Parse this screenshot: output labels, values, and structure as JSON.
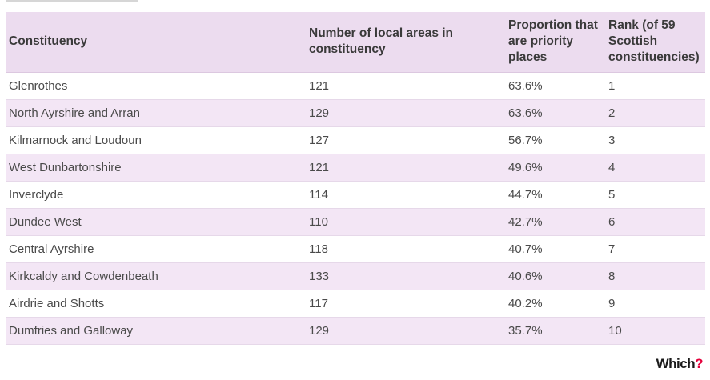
{
  "table": {
    "headers": {
      "constituency": "Constituency",
      "local_areas": "Number of local areas in constituency",
      "proportion": "Proportion that are priority places",
      "rank": "Rank (of 59 Scottish constituencies)"
    },
    "rows": [
      {
        "constituency": "Glenrothes",
        "local_areas": "121",
        "proportion": "63.6%",
        "rank": "1"
      },
      {
        "constituency": "North Ayrshire and Arran",
        "local_areas": "129",
        "proportion": "63.6%",
        "rank": "2"
      },
      {
        "constituency": "Kilmarnock and Loudoun",
        "local_areas": "127",
        "proportion": "56.7%",
        "rank": "3"
      },
      {
        "constituency": "West Dunbartonshire",
        "local_areas": "121",
        "proportion": "49.6%",
        "rank": "4"
      },
      {
        "constituency": "Inverclyde",
        "local_areas": "114",
        "proportion": "44.7%",
        "rank": "5"
      },
      {
        "constituency": "Dundee West",
        "local_areas": "110",
        "proportion": "42.7%",
        "rank": "6"
      },
      {
        "constituency": "Central Ayrshire",
        "local_areas": "118",
        "proportion": "40.7%",
        "rank": "7"
      },
      {
        "constituency": "Kirkcaldy and Cowdenbeath",
        "local_areas": "133",
        "proportion": "40.6%",
        "rank": "8"
      },
      {
        "constituency": "Airdrie and Shotts",
        "local_areas": "117",
        "proportion": "40.2%",
        "rank": "9"
      },
      {
        "constituency": "Dumfries and Galloway",
        "local_areas": "129",
        "proportion": "35.7%",
        "rank": "10"
      }
    ]
  },
  "brand": {
    "name": "Which",
    "mark": "?",
    "mark_color": "#e4003b"
  },
  "colors": {
    "header_bg": "#ecdcef",
    "stripe_bg": "#f3e6f5"
  }
}
